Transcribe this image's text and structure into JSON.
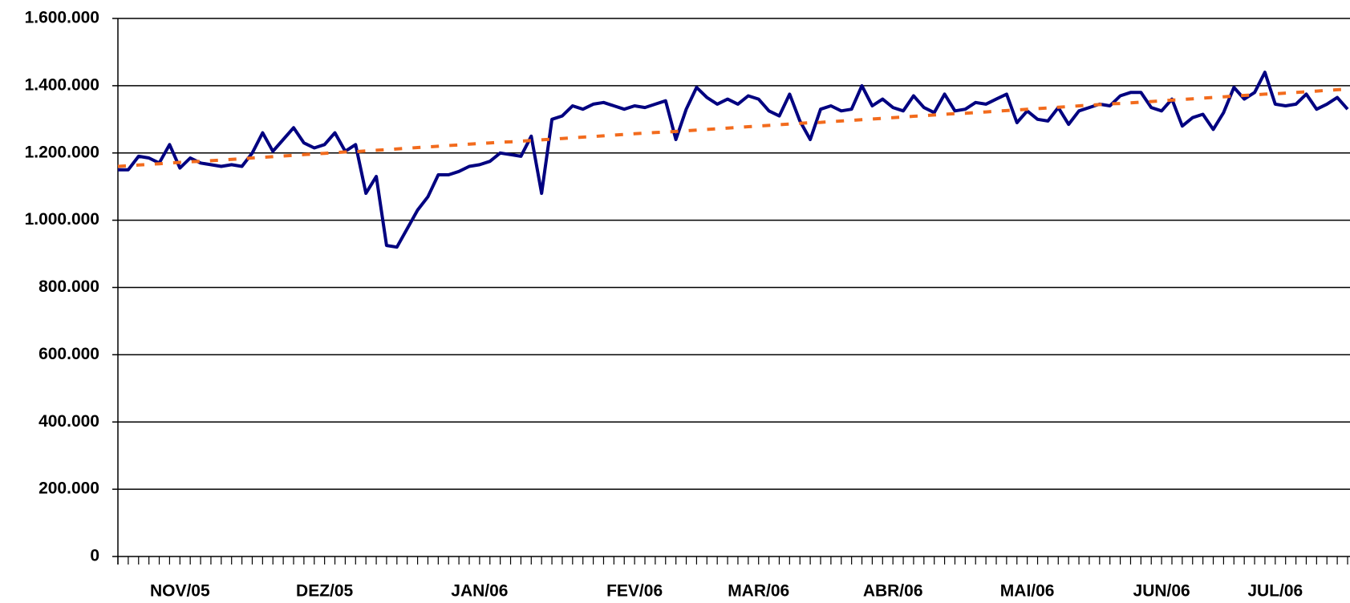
{
  "chart_data": {
    "type": "line",
    "categories": [
      null,
      null,
      null,
      null,
      null,
      null,
      "NOV/05",
      null,
      null,
      null,
      null,
      null,
      null,
      null,
      null,
      null,
      null,
      null,
      null,
      null,
      "DEZ/05",
      null,
      null,
      null,
      null,
      null,
      null,
      null,
      null,
      null,
      null,
      null,
      null,
      null,
      null,
      "JAN/06",
      null,
      null,
      null,
      null,
      null,
      null,
      null,
      null,
      null,
      null,
      null,
      null,
      null,
      null,
      "FEV/06",
      null,
      null,
      null,
      null,
      null,
      null,
      null,
      null,
      null,
      null,
      null,
      "MAR/06",
      null,
      null,
      null,
      null,
      null,
      null,
      null,
      null,
      null,
      null,
      null,
      null,
      "ABR/06",
      null,
      null,
      null,
      null,
      null,
      null,
      null,
      null,
      null,
      null,
      null,
      null,
      "MAI/06",
      null,
      null,
      null,
      null,
      null,
      null,
      null,
      null,
      null,
      null,
      null,
      null,
      "JUN/06",
      null,
      null,
      null,
      null,
      null,
      null,
      null,
      null,
      null,
      null,
      "JUL/06",
      null,
      null,
      null,
      null,
      null,
      null,
      null
    ],
    "series": [
      {
        "color": "#000080",
        "style": "solid",
        "values": [
          1150000,
          1150000,
          1190000,
          1185000,
          1170000,
          1225000,
          1155000,
          1185000,
          1170000,
          1165000,
          1160000,
          1165000,
          1160000,
          1200000,
          1260000,
          1205000,
          1240000,
          1275000,
          1230000,
          1215000,
          1225000,
          1260000,
          1205000,
          1225000,
          1080000,
          1130000,
          925000,
          920000,
          975000,
          1030000,
          1070000,
          1135000,
          1135000,
          1145000,
          1160000,
          1165000,
          1175000,
          1200000,
          1195000,
          1190000,
          1250000,
          1080000,
          1300000,
          1310000,
          1340000,
          1330000,
          1345000,
          1350000,
          1340000,
          1330000,
          1340000,
          1335000,
          1345000,
          1355000,
          1240000,
          1330000,
          1395000,
          1365000,
          1345000,
          1360000,
          1345000,
          1370000,
          1360000,
          1325000,
          1310000,
          1375000,
          1295000,
          1240000,
          1330000,
          1340000,
          1325000,
          1330000,
          1400000,
          1340000,
          1360000,
          1335000,
          1325000,
          1370000,
          1335000,
          1320000,
          1375000,
          1325000,
          1330000,
          1350000,
          1345000,
          1360000,
          1375000,
          1290000,
          1325000,
          1300000,
          1295000,
          1335000,
          1285000,
          1325000,
          1335000,
          1345000,
          1340000,
          1370000,
          1380000,
          1380000,
          1335000,
          1325000,
          1360000,
          1280000,
          1305000,
          1315000,
          1270000,
          1320000,
          1395000,
          1360000,
          1380000,
          1440000,
          1345000,
          1340000,
          1345000,
          1375000,
          1330000,
          1345000,
          1365000,
          1330000
        ]
      },
      {
        "color": "#f26b1d",
        "style": "dashed",
        "values": [
          1160000,
          1162000,
          1164000,
          1166000,
          1168000,
          1170000,
          1172000,
          1174000,
          1175000,
          1177000,
          1179000,
          1181000,
          1183000,
          1185000,
          1187000,
          1189000,
          1191000,
          1193000,
          1195000,
          1197000,
          1199000,
          1201000,
          1203000,
          1204000,
          1206000,
          1208000,
          1210000,
          1212000,
          1214000,
          1216000,
          1218000,
          1220000,
          1222000,
          1224000,
          1226000,
          1228000,
          1230000,
          1232000,
          1233000,
          1235000,
          1237000,
          1239000,
          1241000,
          1243000,
          1245000,
          1247000,
          1249000,
          1251000,
          1253000,
          1255000,
          1257000,
          1259000,
          1261000,
          1262000,
          1264000,
          1266000,
          1268000,
          1270000,
          1272000,
          1274000,
          1276000,
          1278000,
          1280000,
          1282000,
          1284000,
          1286000,
          1288000,
          1290000,
          1291000,
          1293000,
          1295000,
          1297000,
          1299000,
          1301000,
          1303000,
          1305000,
          1307000,
          1309000,
          1311000,
          1313000,
          1315000,
          1317000,
          1318000,
          1320000,
          1322000,
          1324000,
          1326000,
          1328000,
          1330000,
          1332000,
          1334000,
          1336000,
          1338000,
          1340000,
          1342000,
          1344000,
          1346000,
          1347000,
          1349000,
          1351000,
          1353000,
          1355000,
          1357000,
          1359000,
          1361000,
          1363000,
          1365000,
          1367000,
          1369000,
          1371000,
          1373000,
          1375000,
          1376000,
          1378000,
          1380000,
          1382000,
          1384000,
          1386000,
          1388000,
          1390000
        ]
      }
    ],
    "ylim": [
      0,
      1600000
    ],
    "yticks": [
      0,
      {
        "value": 200000,
        "label": "200.000"
      },
      {
        "value": 400000,
        "label": "400.000"
      },
      {
        "value": 600000,
        "label": "600.000"
      },
      {
        "value": 800000,
        "label": "800.000"
      },
      {
        "value": 1000000,
        "label": "1.000.000"
      },
      {
        "value": 1200000,
        "label": "1.200.000"
      },
      {
        "value": 1400000,
        "label": "1.400.000"
      },
      {
        "value": 1600000,
        "label": "1.600.000"
      }
    ],
    "grid": true
  }
}
